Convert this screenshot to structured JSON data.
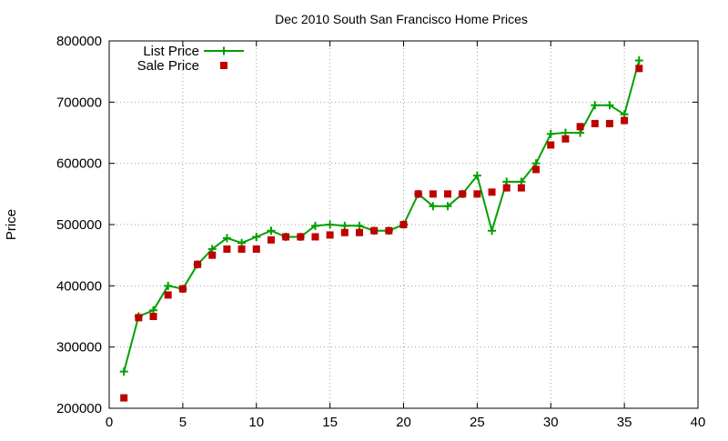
{
  "chart_data": {
    "type": "line",
    "title": "Dec 2010 South San Francisco Home Prices",
    "xlabel": "",
    "ylabel": "Price",
    "xlim": [
      0,
      40
    ],
    "ylim": [
      200000,
      800000
    ],
    "xticks": [
      0,
      5,
      10,
      15,
      20,
      25,
      30,
      35,
      40
    ],
    "yticks": [
      200000,
      300000,
      400000,
      500000,
      600000,
      700000,
      800000
    ],
    "grid": true,
    "legend_position": "top-left",
    "series": [
      {
        "name": "List Price",
        "style": "line-with-plus-markers",
        "color": "#00a000",
        "x": [
          1,
          2,
          3,
          4,
          5,
          6,
          7,
          8,
          9,
          10,
          11,
          12,
          13,
          14,
          15,
          16,
          17,
          18,
          19,
          20,
          21,
          22,
          23,
          24,
          25,
          26,
          27,
          28,
          29,
          30,
          31,
          32,
          33,
          34,
          35,
          36
        ],
        "values": [
          260000,
          350000,
          360000,
          400000,
          395000,
          435000,
          460000,
          478000,
          470000,
          480000,
          490000,
          480000,
          480000,
          498000,
          500000,
          498000,
          498000,
          490000,
          490000,
          500000,
          550000,
          530000,
          530000,
          550000,
          580000,
          490000,
          570000,
          570000,
          600000,
          648000,
          650000,
          650000,
          695000,
          695000,
          680000,
          768000
        ]
      },
      {
        "name": "Sale Price",
        "style": "square-markers",
        "color": "#c00000",
        "x": [
          1,
          2,
          3,
          4,
          5,
          6,
          7,
          8,
          9,
          10,
          11,
          12,
          13,
          14,
          15,
          16,
          17,
          18,
          19,
          20,
          21,
          22,
          23,
          24,
          25,
          26,
          27,
          28,
          29,
          30,
          31,
          32,
          33,
          34,
          35,
          36
        ],
        "values": [
          217000,
          348000,
          350000,
          385000,
          395000,
          435000,
          450000,
          460000,
          460000,
          460000,
          475000,
          480000,
          480000,
          480000,
          483000,
          487000,
          487000,
          490000,
          490000,
          500000,
          550000,
          550000,
          550000,
          550000,
          550000,
          553000,
          560000,
          560000,
          590000,
          630000,
          640000,
          660000,
          665000,
          665000,
          670000,
          755000
        ]
      }
    ]
  }
}
